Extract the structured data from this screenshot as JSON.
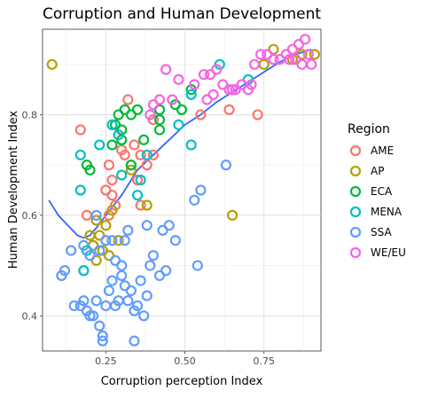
{
  "chart_data": {
    "type": "scatter",
    "title": "Corruption and Human Development",
    "xlabel": "Corruption perception Index",
    "ylabel": "Human Development Index",
    "xlim": [
      0.05,
      0.93
    ],
    "ylim": [
      0.33,
      0.97
    ],
    "xticks": [
      "0.25",
      "0.50",
      "0.75"
    ],
    "yticks": [
      "0.4",
      "0.6",
      "0.8"
    ],
    "grid": true,
    "legend_title": "Region",
    "legend_position": "right",
    "series": [
      {
        "name": "AME",
        "color": "#F8766D",
        "points": [
          [
            0.32,
            0.83
          ],
          [
            0.17,
            0.77
          ],
          [
            0.73,
            0.8
          ],
          [
            0.4,
            0.79
          ],
          [
            0.34,
            0.74
          ],
          [
            0.36,
            0.72
          ],
          [
            0.31,
            0.72
          ],
          [
            0.3,
            0.73
          ],
          [
            0.33,
            0.7
          ],
          [
            0.38,
            0.7
          ],
          [
            0.26,
            0.7
          ],
          [
            0.27,
            0.67
          ],
          [
            0.35,
            0.67
          ],
          [
            0.25,
            0.65
          ],
          [
            0.27,
            0.64
          ],
          [
            0.28,
            0.62
          ],
          [
            0.36,
            0.62
          ],
          [
            0.26,
            0.6
          ],
          [
            0.19,
            0.6
          ],
          [
            0.18,
            0.49
          ],
          [
            0.4,
            0.72
          ],
          [
            0.55,
            0.8
          ],
          [
            0.64,
            0.81
          ]
        ]
      },
      {
        "name": "AP",
        "color": "#B79F00",
        "points": [
          [
            0.08,
            0.9
          ],
          [
            0.78,
            0.93
          ],
          [
            0.91,
            0.92
          ],
          [
            0.87,
            0.92
          ],
          [
            0.75,
            0.9
          ],
          [
            0.84,
            0.91
          ],
          [
            0.25,
            0.58
          ],
          [
            0.29,
            0.55
          ],
          [
            0.23,
            0.56
          ],
          [
            0.27,
            0.61
          ],
          [
            0.22,
            0.59
          ],
          [
            0.21,
            0.54
          ],
          [
            0.22,
            0.51
          ],
          [
            0.26,
            0.52
          ],
          [
            0.11,
            0.48
          ],
          [
            0.65,
            0.6
          ],
          [
            0.38,
            0.62
          ],
          [
            0.33,
            0.69
          ],
          [
            0.2,
            0.56
          ],
          [
            0.24,
            0.53
          ]
        ]
      },
      {
        "name": "ECA",
        "color": "#00BA38",
        "points": [
          [
            0.29,
            0.8
          ],
          [
            0.31,
            0.81
          ],
          [
            0.28,
            0.78
          ],
          [
            0.33,
            0.8
          ],
          [
            0.35,
            0.81
          ],
          [
            0.42,
            0.81
          ],
          [
            0.42,
            0.79
          ],
          [
            0.42,
            0.77
          ],
          [
            0.3,
            0.77
          ],
          [
            0.3,
            0.75
          ],
          [
            0.27,
            0.74
          ],
          [
            0.33,
            0.7
          ],
          [
            0.19,
            0.7
          ],
          [
            0.2,
            0.69
          ],
          [
            0.49,
            0.81
          ],
          [
            0.47,
            0.82
          ],
          [
            0.52,
            0.85
          ],
          [
            0.37,
            0.75
          ]
        ]
      },
      {
        "name": "MENA",
        "color": "#00BFC4",
        "points": [
          [
            0.17,
            0.72
          ],
          [
            0.17,
            0.65
          ],
          [
            0.27,
            0.78
          ],
          [
            0.29,
            0.76
          ],
          [
            0.23,
            0.74
          ],
          [
            0.36,
            0.67
          ],
          [
            0.35,
            0.64
          ],
          [
            0.3,
            0.68
          ],
          [
            0.38,
            0.72
          ],
          [
            0.52,
            0.74
          ],
          [
            0.48,
            0.78
          ],
          [
            0.61,
            0.9
          ],
          [
            0.52,
            0.84
          ],
          [
            0.7,
            0.87
          ],
          [
            0.19,
            0.53
          ],
          [
            0.18,
            0.49
          ]
        ]
      },
      {
        "name": "SSA",
        "color": "#619CFF",
        "points": [
          [
            0.14,
            0.53
          ],
          [
            0.12,
            0.49
          ],
          [
            0.11,
            0.48
          ],
          [
            0.15,
            0.42
          ],
          [
            0.17,
            0.42
          ],
          [
            0.18,
            0.43
          ],
          [
            0.19,
            0.41
          ],
          [
            0.2,
            0.4
          ],
          [
            0.21,
            0.4
          ],
          [
            0.22,
            0.43
          ],
          [
            0.23,
            0.38
          ],
          [
            0.24,
            0.36
          ],
          [
            0.25,
            0.42
          ],
          [
            0.26,
            0.45
          ],
          [
            0.27,
            0.47
          ],
          [
            0.28,
            0.42
          ],
          [
            0.29,
            0.43
          ],
          [
            0.3,
            0.48
          ],
          [
            0.31,
            0.46
          ],
          [
            0.32,
            0.43
          ],
          [
            0.33,
            0.45
          ],
          [
            0.34,
            0.41
          ],
          [
            0.35,
            0.42
          ],
          [
            0.36,
            0.47
          ],
          [
            0.37,
            0.4
          ],
          [
            0.38,
            0.44
          ],
          [
            0.39,
            0.5
          ],
          [
            0.4,
            0.52
          ],
          [
            0.43,
            0.57
          ],
          [
            0.42,
            0.48
          ],
          [
            0.34,
            0.35
          ],
          [
            0.24,
            0.35
          ],
          [
            0.45,
            0.58
          ],
          [
            0.47,
            0.55
          ],
          [
            0.55,
            0.65
          ],
          [
            0.53,
            0.63
          ],
          [
            0.63,
            0.7
          ],
          [
            0.54,
            0.5
          ],
          [
            0.38,
            0.58
          ],
          [
            0.32,
            0.57
          ],
          [
            0.27,
            0.55
          ],
          [
            0.25,
            0.55
          ],
          [
            0.23,
            0.53
          ],
          [
            0.2,
            0.52
          ],
          [
            0.18,
            0.54
          ],
          [
            0.22,
            0.6
          ],
          [
            0.28,
            0.51
          ],
          [
            0.3,
            0.5
          ],
          [
            0.31,
            0.55
          ],
          [
            0.44,
            0.49
          ]
        ]
      },
      {
        "name": "WE/EU",
        "color": "#F564E3",
        "points": [
          [
            0.44,
            0.89
          ],
          [
            0.48,
            0.87
          ],
          [
            0.53,
            0.86
          ],
          [
            0.56,
            0.88
          ],
          [
            0.58,
            0.88
          ],
          [
            0.6,
            0.89
          ],
          [
            0.62,
            0.86
          ],
          [
            0.64,
            0.85
          ],
          [
            0.66,
            0.85
          ],
          [
            0.7,
            0.85
          ],
          [
            0.71,
            0.86
          ],
          [
            0.76,
            0.92
          ],
          [
            0.8,
            0.91
          ],
          [
            0.82,
            0.92
          ],
          [
            0.84,
            0.93
          ],
          [
            0.86,
            0.94
          ],
          [
            0.88,
            0.95
          ],
          [
            0.89,
            0.92
          ],
          [
            0.9,
            0.9
          ],
          [
            0.87,
            0.9
          ],
          [
            0.85,
            0.91
          ],
          [
            0.83,
            0.91
          ],
          [
            0.78,
            0.91
          ],
          [
            0.74,
            0.92
          ],
          [
            0.72,
            0.9
          ],
          [
            0.68,
            0.86
          ],
          [
            0.65,
            0.85
          ],
          [
            0.59,
            0.84
          ],
          [
            0.57,
            0.83
          ],
          [
            0.46,
            0.83
          ],
          [
            0.42,
            0.83
          ],
          [
            0.4,
            0.82
          ],
          [
            0.39,
            0.8
          ]
        ]
      }
    ],
    "trend": {
      "color": "#3366FF",
      "x": [
        0.07,
        0.1,
        0.13,
        0.16,
        0.18,
        0.2,
        0.22,
        0.25,
        0.3,
        0.35,
        0.4,
        0.45,
        0.5,
        0.55,
        0.6,
        0.65,
        0.7,
        0.75,
        0.8,
        0.85,
        0.9
      ],
      "y": [
        0.63,
        0.6,
        0.58,
        0.56,
        0.555,
        0.56,
        0.575,
        0.6,
        0.64,
        0.69,
        0.72,
        0.75,
        0.78,
        0.8,
        0.825,
        0.845,
        0.865,
        0.885,
        0.905,
        0.92,
        0.93
      ]
    }
  }
}
